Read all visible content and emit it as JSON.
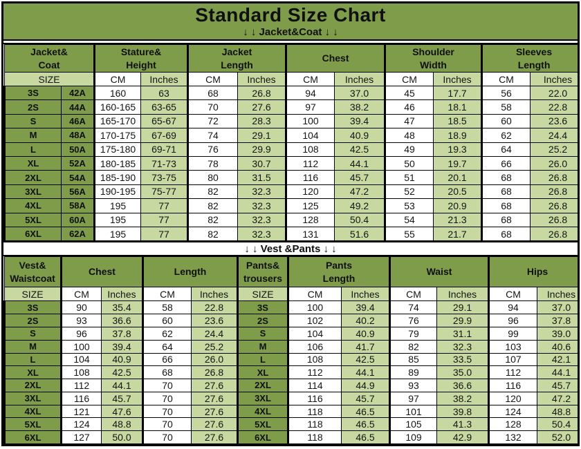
{
  "title": "Standard Size Chart",
  "colors": {
    "olive_green": "#7e9c4a",
    "light_green": "#c7d9a1",
    "cell_white": "#ffffff",
    "border_black": "#000000"
  },
  "chart_data": [
    {
      "type": "table",
      "section_banner": "↓ ↓  Jacket&Coat ↓ ↓",
      "header_groups": [
        "Jacket&\nCoat",
        "Stature&\nHeight",
        "Jacket\nLength",
        "Chest",
        "Shoulder\nWidth",
        "Sleeves\nLength"
      ],
      "subheader": [
        "SIZE",
        "CM",
        "Inches",
        "CM",
        "Inches",
        "CM",
        "Inches",
        "CM",
        "Inches",
        "CM",
        "Inches"
      ],
      "rows": [
        [
          "3S",
          "42A",
          "160",
          "63",
          "68",
          "26.8",
          "94",
          "37.0",
          "45",
          "17.7",
          "56",
          "22.0"
        ],
        [
          "2S",
          "44A",
          "160-165",
          "63-65",
          "70",
          "27.6",
          "97",
          "38.2",
          "46",
          "18.1",
          "58",
          "22.8"
        ],
        [
          "S",
          "46A",
          "165-170",
          "65-67",
          "72",
          "28.3",
          "100",
          "39.4",
          "47",
          "18.5",
          "60",
          "23.6"
        ],
        [
          "M",
          "48A",
          "170-175",
          "67-69",
          "74",
          "29.1",
          "104",
          "40.9",
          "48",
          "18.9",
          "62",
          "24.4"
        ],
        [
          "L",
          "50A",
          "175-180",
          "69-71",
          "76",
          "29.9",
          "108",
          "42.5",
          "49",
          "19.3",
          "64",
          "25.2"
        ],
        [
          "XL",
          "52A",
          "180-185",
          "71-73",
          "78",
          "30.7",
          "112",
          "44.1",
          "50",
          "19.7",
          "66",
          "26.0"
        ],
        [
          "2XL",
          "54A",
          "185-190",
          "73-75",
          "80",
          "31.5",
          "116",
          "45.7",
          "51",
          "20.1",
          "68",
          "26.8"
        ],
        [
          "3XL",
          "56A",
          "190-195",
          "75-77",
          "82",
          "32.3",
          "120",
          "47.2",
          "52",
          "20.5",
          "68",
          "26.8"
        ],
        [
          "4XL",
          "58A",
          "195",
          "77",
          "82",
          "32.3",
          "125",
          "49.2",
          "53",
          "20.9",
          "68",
          "26.8"
        ],
        [
          "5XL",
          "60A",
          "195",
          "77",
          "82",
          "32.3",
          "128",
          "50.4",
          "54",
          "21.3",
          "68",
          "26.8"
        ],
        [
          "6XL",
          "62A",
          "195",
          "77",
          "82",
          "32.3",
          "131",
          "51.6",
          "55",
          "21.7",
          "68",
          "26.8"
        ]
      ]
    },
    {
      "type": "table",
      "section_banner": "↓ ↓  Vest &Pants ↓ ↓",
      "header_groups": [
        "Vest&\nWaistcoat",
        "Chest",
        "Length",
        "Pants&\ntrousers",
        "Pants\nLength",
        "Waist",
        "Hips"
      ],
      "subheader": [
        "SIZE",
        "CM",
        "Inches",
        "CM",
        "Inches",
        "SIZE",
        "CM",
        "Inches",
        "CM",
        "Inches",
        "CM",
        "Inches"
      ],
      "rows": [
        [
          "3S",
          "90",
          "35.4",
          "58",
          "22.8",
          "3S",
          "100",
          "39.4",
          "74",
          "29.1",
          "94",
          "37.0"
        ],
        [
          "2S",
          "93",
          "36.6",
          "60",
          "23.6",
          "2S",
          "102",
          "40.2",
          "76",
          "29.9",
          "96",
          "37.8"
        ],
        [
          "S",
          "96",
          "37.8",
          "62",
          "24.4",
          "S",
          "104",
          "40.9",
          "79",
          "31.1",
          "99",
          "39.0"
        ],
        [
          "M",
          "100",
          "39.4",
          "64",
          "25.2",
          "M",
          "106",
          "41.7",
          "82",
          "32.3",
          "103",
          "40.6"
        ],
        [
          "L",
          "104",
          "40.9",
          "66",
          "26.0",
          "L",
          "108",
          "42.5",
          "85",
          "33.5",
          "107",
          "42.1"
        ],
        [
          "XL",
          "108",
          "42.5",
          "68",
          "26.8",
          "XL",
          "112",
          "44.1",
          "89",
          "35.0",
          "112",
          "44.1"
        ],
        [
          "2XL",
          "112",
          "44.1",
          "70",
          "27.6",
          "2XL",
          "114",
          "44.9",
          "93",
          "36.6",
          "116",
          "45.7"
        ],
        [
          "3XL",
          "116",
          "45.7",
          "70",
          "27.6",
          "3XL",
          "116",
          "45.7",
          "97",
          "38.2",
          "120",
          "47.2"
        ],
        [
          "4XL",
          "121",
          "47.6",
          "70",
          "27.6",
          "4XL",
          "118",
          "46.5",
          "101",
          "39.8",
          "124",
          "48.8"
        ],
        [
          "5XL",
          "124",
          "48.8",
          "70",
          "27.6",
          "5XL",
          "118",
          "46.5",
          "105",
          "41.3",
          "128",
          "50.4"
        ],
        [
          "6XL",
          "127",
          "50.0",
          "70",
          "27.6",
          "6XL",
          "118",
          "46.5",
          "109",
          "42.9",
          "132",
          "52.0"
        ]
      ]
    }
  ]
}
